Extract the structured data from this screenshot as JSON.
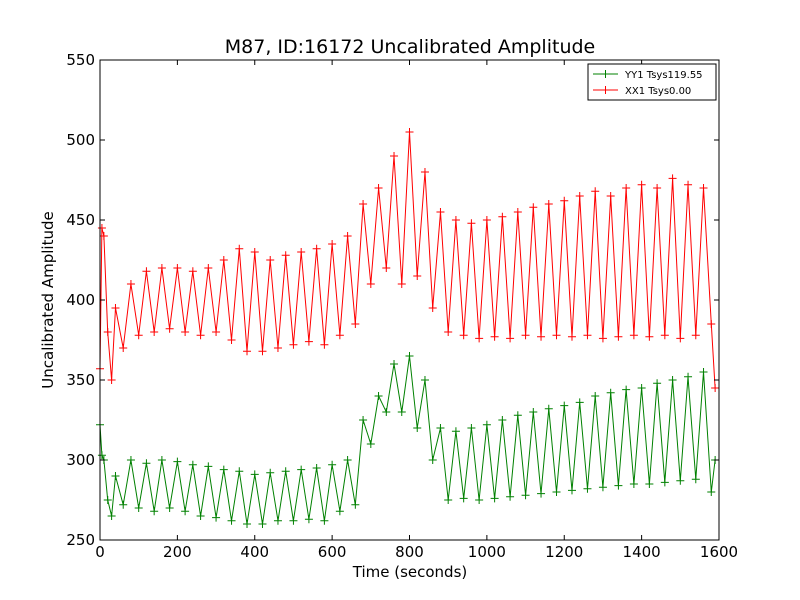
{
  "chart_data": {
    "type": "line",
    "title": "M87, ID:16172 Uncalibrated Amplitude",
    "xlabel": "Time (seconds)",
    "ylabel": "Uncalibrated Amplitude",
    "xlim": [
      0,
      1600
    ],
    "ylim": [
      250,
      550
    ],
    "xticks": [
      0,
      200,
      400,
      600,
      800,
      1000,
      1200,
      1400,
      1600
    ],
    "yticks": [
      250,
      300,
      350,
      400,
      450,
      500,
      550
    ],
    "grid": false,
    "legend_position": "top-right",
    "series": [
      {
        "name": "YY1 Tsys119.55",
        "color": "#008000",
        "marker": "+",
        "x": [
          0,
          5,
          10,
          20,
          30,
          40,
          60,
          80,
          100,
          120,
          140,
          160,
          180,
          200,
          220,
          240,
          260,
          280,
          300,
          320,
          340,
          360,
          380,
          400,
          420,
          440,
          460,
          480,
          500,
          520,
          540,
          560,
          580,
          600,
          620,
          640,
          660,
          680,
          700,
          720,
          740,
          760,
          780,
          800,
          820,
          840,
          860,
          880,
          900,
          920,
          940,
          960,
          980,
          1000,
          1020,
          1040,
          1060,
          1080,
          1100,
          1120,
          1140,
          1160,
          1180,
          1200,
          1220,
          1240,
          1260,
          1280,
          1300,
          1320,
          1340,
          1360,
          1380,
          1400,
          1420,
          1440,
          1460,
          1480,
          1500,
          1520,
          1540,
          1560,
          1580,
          1590
        ],
        "y": [
          322,
          303,
          300,
          275,
          265,
          290,
          272,
          300,
          270,
          298,
          268,
          300,
          270,
          299,
          268,
          297,
          265,
          296,
          264,
          294,
          262,
          293,
          260,
          291,
          260,
          292,
          262,
          293,
          262,
          294,
          263,
          295,
          262,
          297,
          268,
          300,
          272,
          325,
          310,
          340,
          330,
          360,
          330,
          365,
          320,
          350,
          300,
          320,
          275,
          318,
          276,
          320,
          275,
          322,
          276,
          325,
          277,
          328,
          278,
          330,
          279,
          332,
          280,
          334,
          281,
          336,
          282,
          340,
          283,
          342,
          284,
          344,
          285,
          345,
          285,
          348,
          286,
          350,
          287,
          352,
          288,
          355,
          280,
          300
        ]
      },
      {
        "name": "XX1 Tsys0.00",
        "color": "#ff0000",
        "marker": "+",
        "x": [
          0,
          5,
          10,
          20,
          30,
          40,
          60,
          80,
          100,
          120,
          140,
          160,
          180,
          200,
          220,
          240,
          260,
          280,
          300,
          320,
          340,
          360,
          380,
          400,
          420,
          440,
          460,
          480,
          500,
          520,
          540,
          560,
          580,
          600,
          620,
          640,
          660,
          680,
          700,
          720,
          740,
          760,
          780,
          800,
          820,
          840,
          860,
          880,
          900,
          920,
          940,
          960,
          980,
          1000,
          1020,
          1040,
          1060,
          1080,
          1100,
          1120,
          1140,
          1160,
          1180,
          1200,
          1220,
          1240,
          1260,
          1280,
          1300,
          1320,
          1340,
          1360,
          1380,
          1400,
          1420,
          1440,
          1460,
          1480,
          1500,
          1520,
          1540,
          1560,
          1580,
          1590
        ],
        "y": [
          357,
          445,
          440,
          380,
          350,
          395,
          370,
          410,
          378,
          418,
          380,
          420,
          382,
          420,
          380,
          418,
          378,
          420,
          380,
          425,
          375,
          432,
          368,
          430,
          368,
          425,
          370,
          428,
          372,
          430,
          374,
          432,
          372,
          435,
          378,
          440,
          385,
          460,
          410,
          470,
          420,
          490,
          410,
          505,
          415,
          480,
          395,
          455,
          380,
          450,
          378,
          448,
          376,
          450,
          377,
          452,
          376,
          455,
          378,
          458,
          377,
          460,
          378,
          462,
          377,
          465,
          378,
          468,
          376,
          465,
          377,
          470,
          378,
          472,
          377,
          470,
          378,
          476,
          376,
          472,
          378,
          470,
          385,
          345
        ]
      }
    ]
  }
}
